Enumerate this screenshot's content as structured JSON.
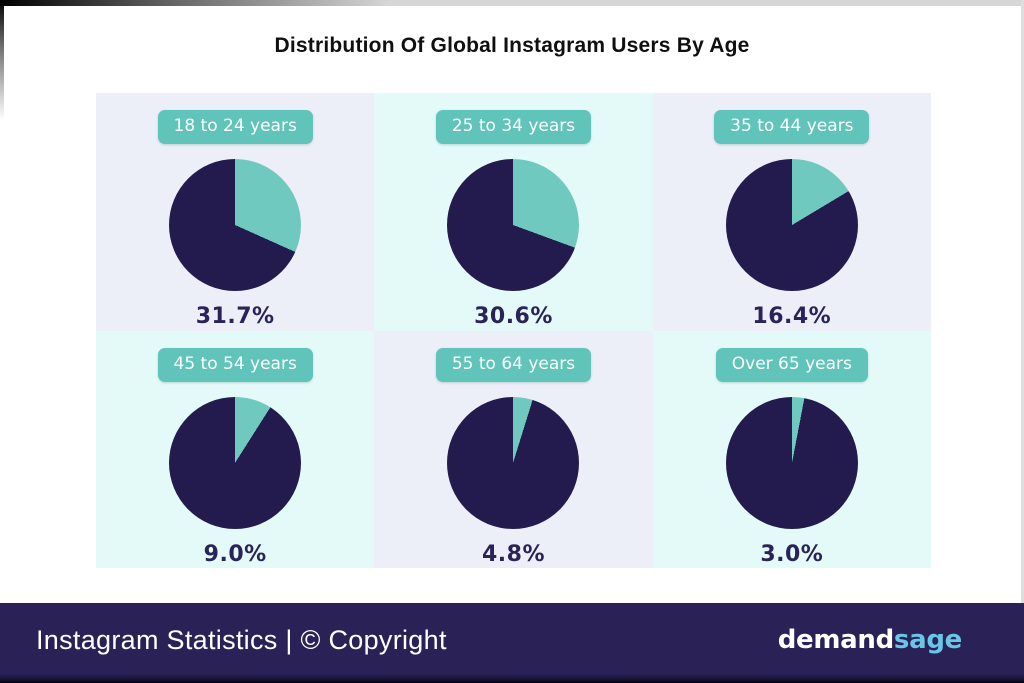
{
  "title": "Distribution Of Global Instagram Users By Age",
  "colors": {
    "pie_dark": "#231b4e",
    "pie_teal": "#70c9bf",
    "badge_teal": "#60c4bb",
    "tile_lavender": "#eceef8",
    "tile_mint": "#e4faf8",
    "percent_text": "#2a2357",
    "footer_navy": "#2a2257",
    "logo_accent": "#69c6e6"
  },
  "chart_data": {
    "type": "pie",
    "title": "Distribution Of Global Instagram Users By Age",
    "legend_position": "none",
    "layout": "2 rows x 3 columns of mini pies, teal slice starts at 12 o'clock sweeping clockwise, remainder dark navy",
    "categories": [
      "18 to 24 years",
      "25 to 34 years",
      "35 to 44 years",
      "45 to 54 years",
      "55 to 64 years",
      "Over 65 years"
    ],
    "values": [
      31.7,
      30.6,
      16.4,
      9.0,
      4.8,
      3.0
    ],
    "pies": [
      {
        "label": "18 to 24 years",
        "value": 31.7,
        "display": "31.7%",
        "bg": "lavender"
      },
      {
        "label": "25 to 34 years",
        "value": 30.6,
        "display": "30.6%",
        "bg": "mint"
      },
      {
        "label": "35 to 44 years",
        "value": 16.4,
        "display": "16.4%",
        "bg": "lavender"
      },
      {
        "label": "45 to 54 years",
        "value": 9.0,
        "display": "9.0%",
        "bg": "mint"
      },
      {
        "label": "55 to 64 years",
        "value": 4.8,
        "display": "4.8%",
        "bg": "lavender"
      },
      {
        "label": "Over 65 years",
        "value": 3.0,
        "display": "3.0%",
        "bg": "mint"
      }
    ]
  },
  "footer": {
    "caption": "Instagram Statistics | © Copyright",
    "logo_part1": "demand",
    "logo_part2": "sage"
  }
}
